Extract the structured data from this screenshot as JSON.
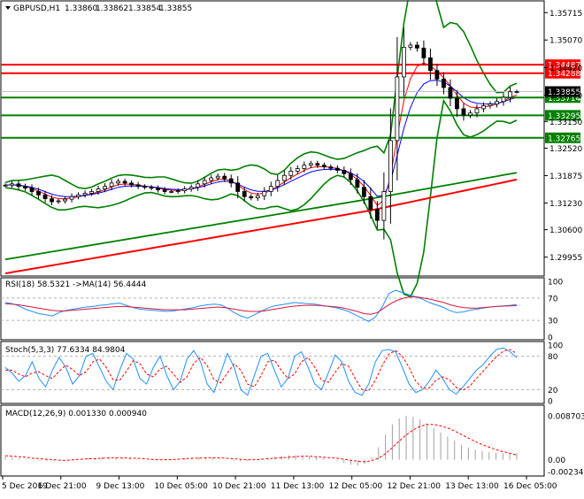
{
  "chart_data": [
    {
      "type": "candlestick",
      "symbol": "GBPUSD,H1",
      "header_values": [
        "1.33860",
        "1.33862",
        "1.33854",
        "1.33855"
      ],
      "current_price": "1.33855",
      "ylim": [
        1.2955,
        1.3595
      ],
      "y_ticks": [
        "1.35715",
        "1.35070",
        "1.34420",
        "1.33770",
        "1.33150",
        "1.32520",
        "1.31875",
        "1.31230",
        "1.30600",
        "1.29955"
      ],
      "y_tick_values": [
        1.35715,
        1.3507,
        1.3442,
        1.3377,
        1.3315,
        1.3252,
        1.31875,
        1.3123,
        1.306,
        1.29955
      ],
      "level_lines": [
        {
          "label": "1.34487",
          "value": 1.34487,
          "color": "#ff0000"
        },
        {
          "label": "1.34288",
          "value": 1.34288,
          "color": "#ff0000"
        },
        {
          "label": "1.33714",
          "value": 1.33714,
          "color": "#008000"
        },
        {
          "label": "1.33295",
          "value": 1.33295,
          "color": "#008000"
        },
        {
          "label": "1.32765",
          "value": 1.32765,
          "color": "#008000"
        }
      ],
      "x_labels": [
        "5 Dec 2019",
        "6 Dec 21:00",
        "9 Dec 13:00",
        "10 Dec 05:00",
        "10 Dec 21:00",
        "11 Dec 13:00",
        "12 Dec 05:00",
        "12 Dec 21:00",
        "13 Dec 13:00",
        "16 Dec 05:00"
      ],
      "close_series": [
        1.3165,
        1.3168,
        1.3162,
        1.3158,
        1.315,
        1.3142,
        1.3133,
        1.3126,
        1.3128,
        1.3132,
        1.3138,
        1.3142,
        1.3146,
        1.315,
        1.3156,
        1.3162,
        1.317,
        1.3174,
        1.317,
        1.3166,
        1.3162,
        1.316,
        1.3158,
        1.3154,
        1.315,
        1.315,
        1.3152,
        1.3156,
        1.316,
        1.3168,
        1.3176,
        1.3182,
        1.3186,
        1.318,
        1.317,
        1.315,
        1.3138,
        1.3135,
        1.314,
        1.315,
        1.3162,
        1.3176,
        1.3188,
        1.3198,
        1.3204,
        1.3212,
        1.3216,
        1.3212,
        1.3208,
        1.3205,
        1.32,
        1.3192,
        1.3178,
        1.316,
        1.3138,
        1.3108,
        1.3082,
        1.315,
        1.327,
        1.342,
        1.349,
        1.3495,
        1.3488,
        1.3465,
        1.3435,
        1.3415,
        1.3395,
        1.337,
        1.3345,
        1.333,
        1.3335,
        1.3345,
        1.3352,
        1.3356,
        1.3362,
        1.3372,
        1.3385,
        1.33855
      ],
      "ma_series": {
        "red_ma": "#ff0000",
        "blue_ma": "#0000ff",
        "bands": "#008000",
        "long_ma": "#008000",
        "slow_ma": "#ff0000"
      }
    },
    {
      "type": "line",
      "title": "RSI(18) 58.5321 ->MA(14) 56.4444",
      "ylim": [
        0,
        100
      ],
      "y_ticks": [
        "100",
        "70",
        "30",
        "0"
      ],
      "y_tick_values": [
        100,
        70,
        30,
        0
      ],
      "series": [
        {
          "name": "RSI(18)",
          "color": "#1e90ff",
          "values": [
            62,
            60,
            56,
            50,
            46,
            42,
            40,
            38,
            44,
            48,
            50,
            52,
            54,
            55,
            57,
            58,
            60,
            61,
            57,
            53,
            50,
            49,
            48,
            47,
            46,
            47,
            49,
            51,
            53,
            56,
            58,
            59,
            58,
            52,
            44,
            38,
            34,
            40,
            46,
            52,
            56,
            58,
            60,
            62,
            61,
            60,
            59,
            57,
            55,
            53,
            50,
            46,
            40,
            34,
            28,
            36,
            54,
            78,
            84,
            80,
            76,
            72,
            68,
            62,
            58,
            54,
            48,
            44,
            45,
            48,
            50,
            52,
            54,
            55,
            56,
            57,
            58.5321
          ]
        },
        {
          "name": "MA(14)",
          "color": "#dc143c",
          "values": [
            60,
            59,
            58,
            56,
            54,
            52,
            50,
            48,
            47,
            47,
            48,
            49,
            50,
            51,
            52,
            53,
            54,
            55,
            55,
            54,
            53,
            52,
            51,
            50,
            49,
            49,
            49,
            49,
            50,
            51,
            52,
            53,
            54,
            53,
            51,
            49,
            47,
            46,
            46,
            47,
            49,
            51,
            53,
            55,
            56,
            57,
            57,
            57,
            56,
            55,
            54,
            52,
            49,
            46,
            42,
            41,
            44,
            52,
            60,
            66,
            70,
            72,
            72,
            70,
            68,
            65,
            62,
            58,
            55,
            53,
            52,
            52,
            53,
            54,
            55,
            55.5,
            56,
            56.4444
          ]
        }
      ]
    },
    {
      "type": "line",
      "title": "Stoch(5,3,3) 77.6334 84.9804",
      "ylim": [
        0,
        100
      ],
      "y_ticks": [
        "100",
        "80",
        "20",
        "0"
      ],
      "y_tick_values": [
        100,
        80,
        20,
        0
      ],
      "series": [
        {
          "name": "Stoch main",
          "color": "#1e90ff",
          "values": [
            60,
            50,
            35,
            45,
            70,
            40,
            25,
            55,
            78,
            60,
            30,
            45,
            80,
            85,
            60,
            35,
            20,
            55,
            85,
            75,
            40,
            30,
            60,
            80,
            45,
            20,
            35,
            75,
            90,
            70,
            30,
            15,
            50,
            85,
            60,
            20,
            10,
            45,
            80,
            85,
            55,
            25,
            40,
            80,
            88,
            60,
            30,
            20,
            50,
            82,
            70,
            35,
            15,
            10,
            30,
            70,
            90,
            92,
            88,
            60,
            30,
            15,
            20,
            35,
            55,
            40,
            20,
            12,
            25,
            40,
            55,
            65,
            80,
            92,
            95,
            88,
            77.6334
          ]
        },
        {
          "name": "Stoch signal",
          "color": "#ff0000",
          "values": [
            55,
            55,
            48,
            43,
            50,
            52,
            45,
            40,
            53,
            64,
            56,
            45,
            52,
            70,
            75,
            60,
            38,
            37,
            53,
            72,
            67,
            48,
            43,
            57,
            62,
            48,
            33,
            43,
            67,
            78,
            63,
            38,
            32,
            50,
            66,
            55,
            30,
            25,
            45,
            70,
            73,
            55,
            40,
            48,
            70,
            78,
            60,
            37,
            33,
            51,
            67,
            62,
            40,
            20,
            18,
            37,
            63,
            84,
            90,
            80,
            60,
            35,
            22,
            23,
            37,
            43,
            38,
            24,
            19,
            26,
            40,
            53,
            67,
            79,
            89,
            92,
            84.9804
          ]
        }
      ]
    },
    {
      "type": "bar",
      "title": "MACD(12,26,9) 0.001330 0.000940",
      "ylim": [
        -0.002342,
        0.008703
      ],
      "y_ticks": [
        "0.008703",
        "0.00",
        "-0.002342"
      ],
      "y_tick_values": [
        0.008703,
        0.0,
        -0.002342
      ],
      "series": [
        {
          "name": "MACD",
          "color": "#a0a0a0",
          "values": [
            0.0006,
            0.0005,
            0.0003,
            0.0001,
            -0.0001,
            -0.0002,
            -0.0003,
            -0.0002,
            -0.0001,
            0.0,
            0.0001,
            0.0002,
            0.0003,
            0.0004,
            0.0005,
            0.0005,
            0.0004,
            0.0003,
            0.0002,
            0.0001,
            0.0,
            -0.0001,
            -0.0001,
            0.0,
            0.0001,
            0.0002,
            0.0003,
            0.0004,
            0.0005,
            0.0005,
            0.0004,
            0.0002,
            0.0,
            -0.0002,
            -0.0003,
            -0.0002,
            0.0,
            0.0002,
            0.0004,
            0.0006,
            0.0008,
            0.0009,
            0.0009,
            0.0008,
            0.0007,
            0.0005,
            0.0003,
            0.0001,
            -0.0002,
            -0.0006,
            -0.001,
            -0.0012,
            -0.0008,
            0.0005,
            0.0025,
            0.005,
            0.007,
            0.0082,
            0.0087,
            0.0085,
            0.008,
            0.0072,
            0.0063,
            0.0054,
            0.0046,
            0.0038,
            0.003,
            0.0024,
            0.002,
            0.0017,
            0.0015,
            0.0014,
            0.0013,
            0.0013,
            0.00133
          ]
        },
        {
          "name": "Signal",
          "color": "#ff0000",
          "values": [
            0.0008,
            0.0007,
            0.0006,
            0.0005,
            0.0003,
            0.0002,
            0.0001,
            0.0,
            -0.0001,
            -0.0001,
            0.0,
            0.0001,
            0.0002,
            0.0002,
            0.0003,
            0.0004,
            0.0004,
            0.0004,
            0.0003,
            0.0003,
            0.0002,
            0.0001,
            0.0,
            0.0,
            0.0,
            0.0001,
            0.0002,
            0.0003,
            0.0003,
            0.0004,
            0.0004,
            0.0004,
            0.0003,
            0.0002,
            0.0001,
            0.0,
            0.0,
            0.0001,
            0.0002,
            0.0003,
            0.0004,
            0.0005,
            0.0006,
            0.0007,
            0.0007,
            0.0006,
            0.0005,
            0.0004,
            0.0003,
            0.0001,
            -0.0001,
            -0.0003,
            -0.0004,
            -0.0002,
            0.0003,
            0.0012,
            0.0024,
            0.0037,
            0.0049,
            0.0059,
            0.0066,
            0.007,
            0.007,
            0.0067,
            0.0063,
            0.0057,
            0.005,
            0.0043,
            0.0036,
            0.003,
            0.0025,
            0.002,
            0.0016,
            0.0013,
            0.00094
          ]
        }
      ]
    }
  ]
}
